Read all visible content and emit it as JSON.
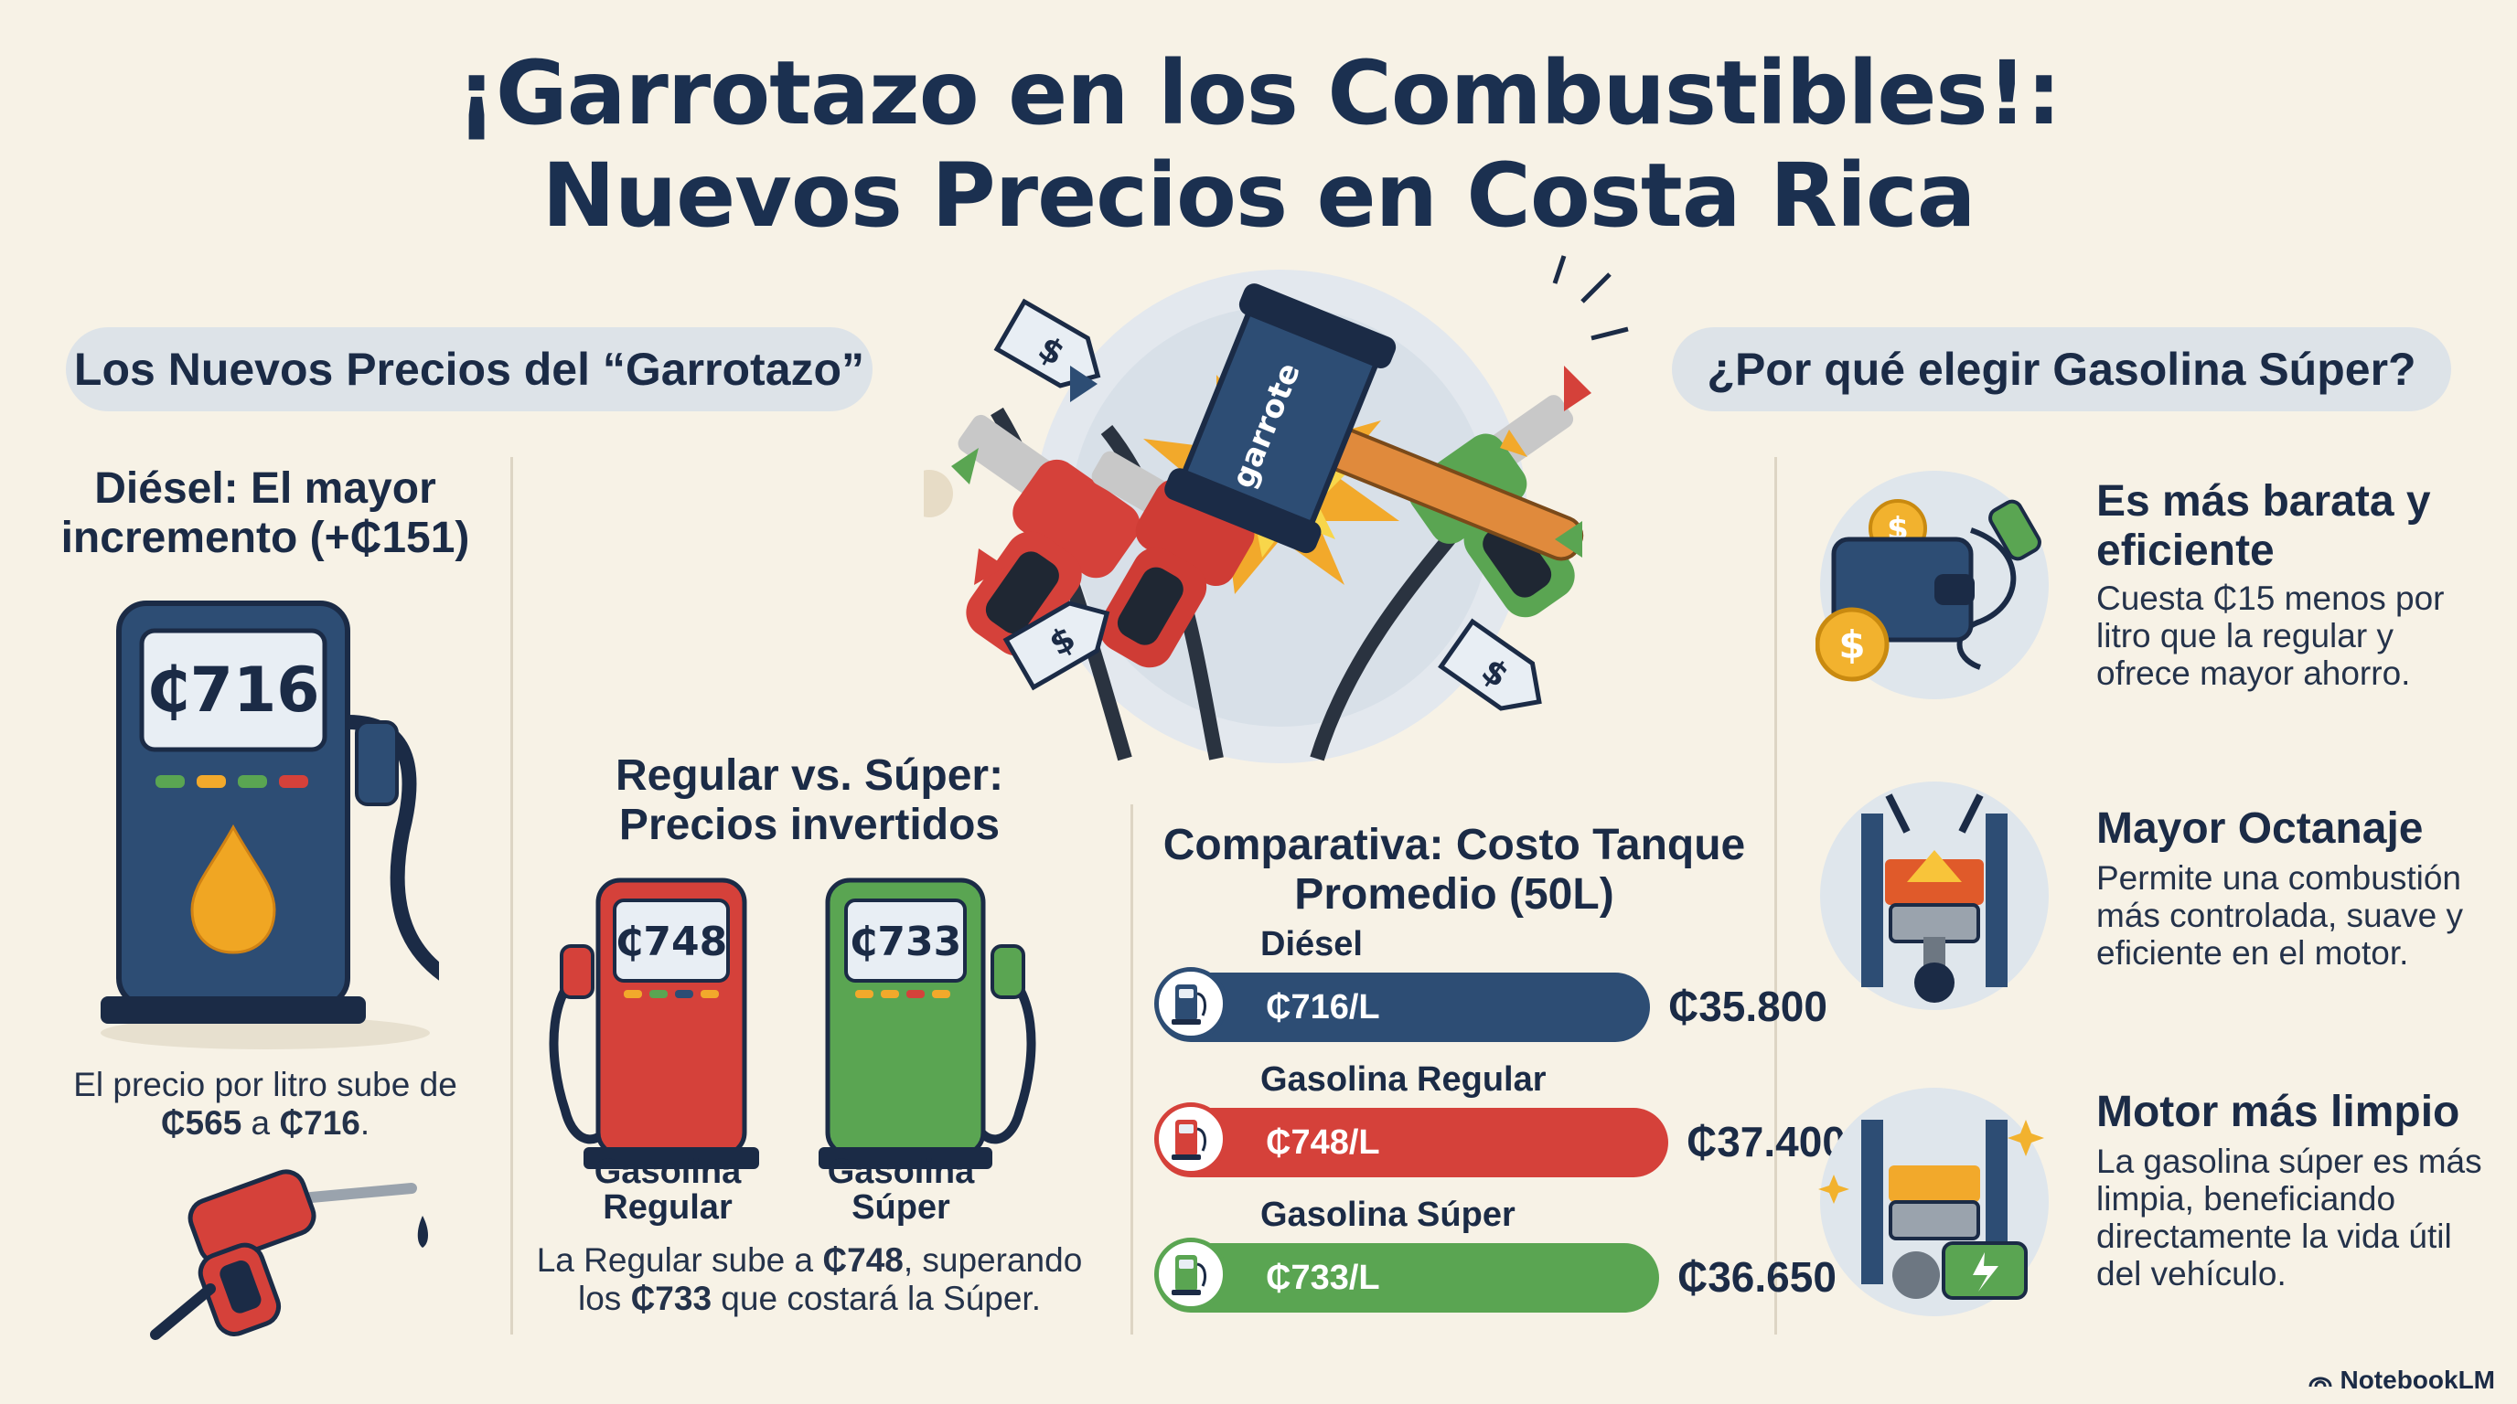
{
  "header": {
    "title_line1": "¡Garrotazo en los Combustibles!:",
    "title_line2": "Nuevos Precios en Costa Rica"
  },
  "left_pill": "Los Nuevos Precios del “Garrotazo”",
  "right_pill": "¿Por qué elegir Gasolina Súper?",
  "hero": {
    "hammer_text": "garrote"
  },
  "diesel": {
    "heading_line1": "Diésel: El mayor",
    "heading_line2": "incremento (+₵151)",
    "pump_price": "₵716",
    "text_line1": "El precio por litro sube de",
    "text_old": "₵565",
    "text_mid": " a ",
    "text_new": "₵716",
    "text_end": "."
  },
  "regular_super": {
    "heading_line1": "Regular vs. Súper:",
    "heading_line2": "Precios invertidos",
    "regular_price": "₵748",
    "regular_label_line1": "Gasolina",
    "regular_label_line2": "Regular",
    "super_price": "₵733",
    "super_label_line1": "Gasolina",
    "super_label_line2": "Súper",
    "text_a": "La Regular sube a ",
    "text_regular": "₵748",
    "text_b": ", superando",
    "text_c": "los ",
    "text_super": "₵733",
    "text_d": " que costará la Súper."
  },
  "comparison": {
    "heading_line1": "Comparativa: Costo Tanque",
    "heading_line2": "Promedio (50L)",
    "rows": [
      {
        "label": "Diésel",
        "price": "₵716/L",
        "total": "₵35.800",
        "color": "#2d4d74",
        "fill": 0.958
      },
      {
        "label": "Gasolina Regular",
        "price": "₵748/L",
        "total": "₵37.400",
        "color": "#d5413a",
        "fill": 1.0
      },
      {
        "label": "Gasolina Súper",
        "price": "₵733/L",
        "total": "₵36.650",
        "color": "#5aa552",
        "fill": 0.98
      }
    ]
  },
  "benefits": [
    {
      "title_line1": "Es más barata y",
      "title_line2": "eficiente",
      "text": [
        "Cuesta ₵15 menos por",
        "litro que la regular y",
        "ofrece mayor ahorro."
      ]
    },
    {
      "title_line1": "Mayor Octanaje",
      "title_line2": "",
      "text": [
        "Permite una combustión",
        "más controlada, suave y",
        "eficiente en el motor."
      ]
    },
    {
      "title_line1": "Motor más limpio",
      "title_line2": "",
      "text": [
        "La gasolina súper es más",
        "limpia, beneficiando",
        "directamente la vida útil",
        "del vehículo."
      ]
    }
  ],
  "brand": "NotebookLM",
  "colors": {
    "navy": "#1b3050",
    "red": "#d5413a",
    "green": "#5aa552",
    "orange": "#f0a623"
  }
}
